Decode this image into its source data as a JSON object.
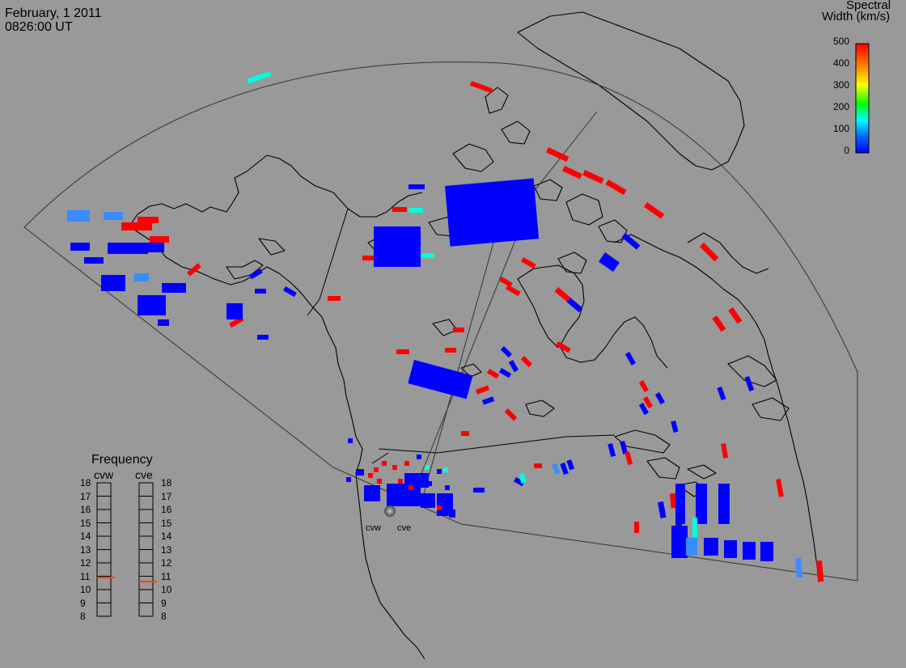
{
  "header": {
    "date": "February, 1 2011",
    "time": "0826:00 UT"
  },
  "colorbar": {
    "title_line1": "Spectral",
    "title_line2": "Width (km/s)",
    "ticks": [
      "500",
      "400",
      "300",
      "200",
      "100",
      "0"
    ],
    "colors": [
      "#0000ff",
      "#0070ff",
      "#00ffff",
      "#00ff00",
      "#ffff00",
      "#ff8000",
      "#ff0000"
    ]
  },
  "frequency_panel": {
    "title": "Frequency",
    "left_label": "cvw",
    "right_label": "cve",
    "scale": [
      "18",
      "17",
      "16",
      "15",
      "14",
      "13",
      "12",
      "11",
      "10",
      "9",
      "8"
    ],
    "cvw_value": 10.9,
    "cve_value": 10.6,
    "marker_color": "#ff4000"
  },
  "sites": {
    "west": "cvw",
    "east": "cve"
  }
}
